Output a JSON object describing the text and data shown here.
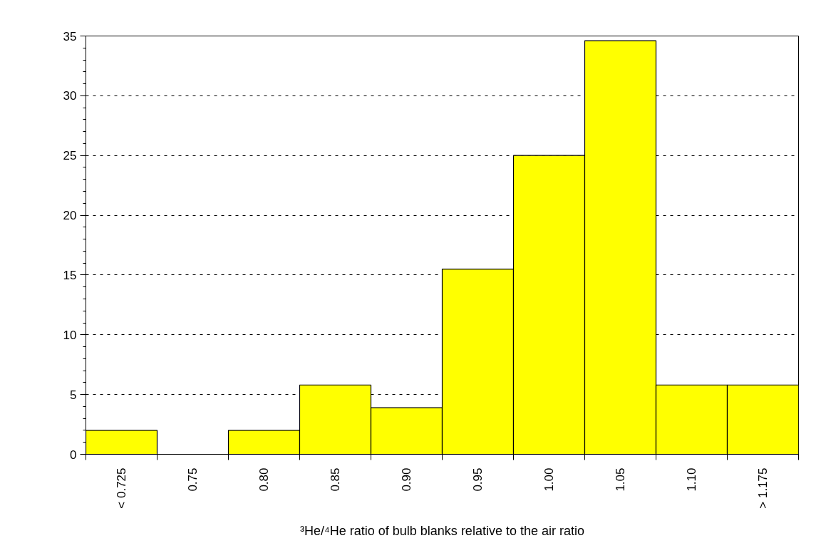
{
  "chart_data": {
    "type": "bar",
    "categories": [
      "< 0.725",
      "0.75",
      "0.80",
      "0.85",
      "0.90",
      "0.95",
      "1.00",
      "1.05",
      "1.10",
      "> 1.175"
    ],
    "values": [
      2,
      0,
      2,
      5.8,
      3.9,
      15.5,
      25,
      34.6,
      5.8,
      5.8
    ],
    "color": "#ffff00",
    "xlabel": "³He/⁴He ratio of bulb blanks relative to the air ratio",
    "ylim": [
      0,
      35
    ],
    "yticks": [
      0,
      5,
      10,
      15,
      20,
      25,
      30,
      35
    ],
    "grid": "y"
  }
}
